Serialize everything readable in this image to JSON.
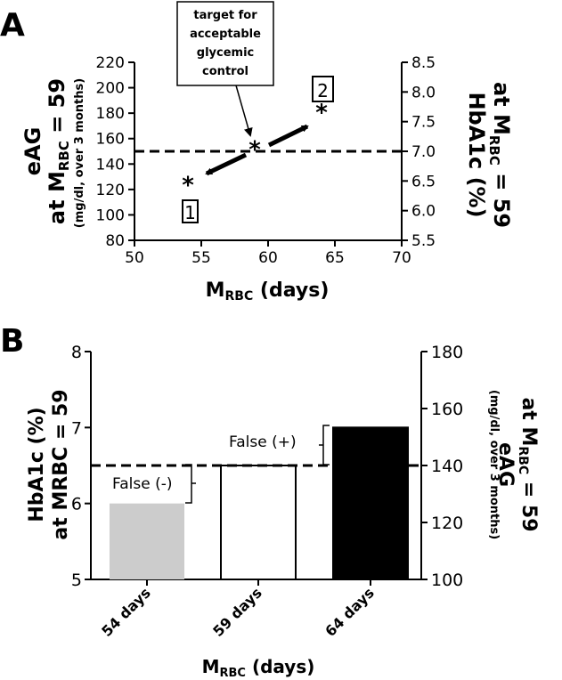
{
  "panels": {
    "a": {
      "letter": "A"
    },
    "b": {
      "letter": "B"
    }
  },
  "chart_data": [
    {
      "panel": "A",
      "type": "scatter",
      "xlabel_main": "M",
      "xlabel_sub": "RBC",
      "xlabel_rest": " (days)",
      "xlim": [
        50,
        70
      ],
      "xticks": [
        50,
        55,
        60,
        65,
        70
      ],
      "ylim": [
        80,
        220
      ],
      "yticks": [
        80,
        100,
        120,
        140,
        160,
        180,
        200,
        220
      ],
      "y2lim": [
        5.5,
        8.5
      ],
      "y2ticks": [
        "5.5",
        "6.0",
        "6.5",
        "7.0",
        "7.5",
        "8.0",
        "8.5"
      ],
      "ylabel_line1": "eAG",
      "ylabel_line2_main": "at M",
      "ylabel_line2_sub": "RBC",
      "ylabel_line2_rest": " = 59",
      "ylabel_line3": "(mg/dl, over 3 months)",
      "y2label_line1": "HbA1c (%)",
      "y2label_line2_main": "at M",
      "y2label_line2_sub": "RBC",
      "y2label_line2_rest": " = 59",
      "points": [
        {
          "x": 54,
          "y": 126,
          "marker": "*"
        },
        {
          "x": 59,
          "y": 154,
          "marker": "*"
        },
        {
          "x": 64,
          "y": 183,
          "marker": "*"
        }
      ],
      "reference_line": {
        "y2": 7.0,
        "style": "dashed"
      },
      "annotations": {
        "target_lines": [
          "target for",
          "acceptable",
          "glycemic",
          "control"
        ],
        "box1": "1",
        "box2": "2"
      }
    },
    {
      "panel": "B",
      "type": "bar",
      "categories": [
        "54 days",
        "59 days",
        "64 days"
      ],
      "values": [
        6.0,
        6.5,
        7.0
      ],
      "bar_colors": [
        "#cccccc",
        "#ffffff",
        "#000000"
      ],
      "ylim": [
        5,
        8
      ],
      "yticks": [
        5,
        6,
        7,
        8
      ],
      "y2lim": [
        100,
        180
      ],
      "y2ticks": [
        100,
        120,
        140,
        160,
        180
      ],
      "ylabel_line1": "HbA1c (%)",
      "ylabel_line2": "at MRBC = 59",
      "y2label_line1": "eAG",
      "y2label_line2_main": "at  M",
      "y2label_line2_sub": "RBC",
      "y2label_line2_rest": " = 59",
      "y2label_line3": "(mg/dl, over 3 months)",
      "xlabel_main": "M",
      "xlabel_sub": "RBC",
      "xlabel_rest": " (days)",
      "reference_line": {
        "y": 6.5,
        "style": "dashed"
      },
      "annotations": {
        "false_negative": "False (-)",
        "false_positive": "False (+)"
      }
    }
  ]
}
